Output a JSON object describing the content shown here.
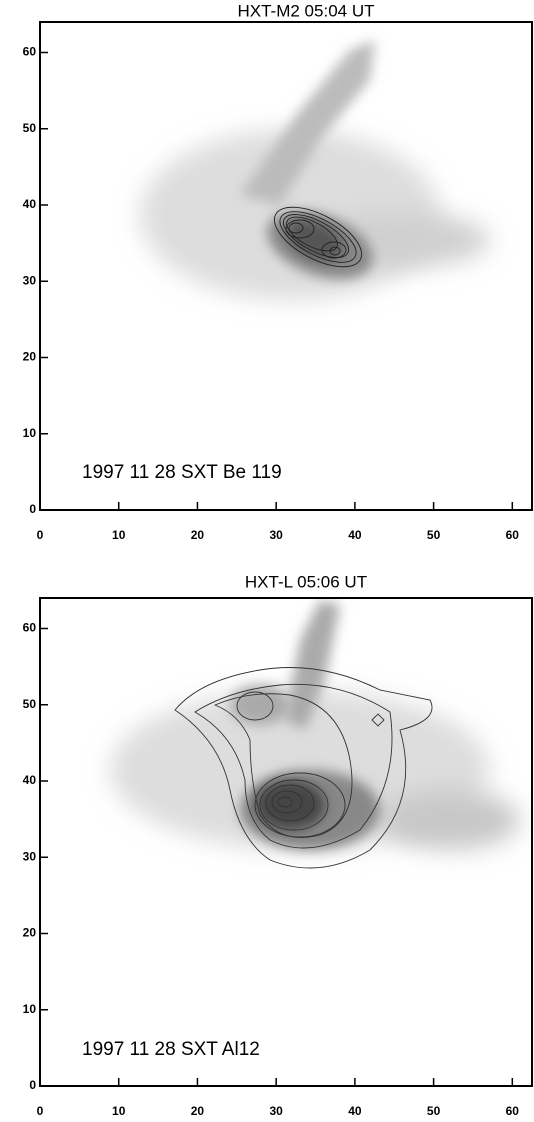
{
  "chart_data": [
    {
      "type": "image",
      "title": "HXT-M2 05:04  UT",
      "annotation": "1997 11 28   SXT Be 119",
      "xlim": [
        0,
        62.5
      ],
      "ylim": [
        0,
        64
      ],
      "xticks": [
        0,
        10,
        20,
        30,
        40,
        50,
        60
      ],
      "yticks": [
        0,
        10,
        20,
        30,
        40,
        50,
        60
      ]
    },
    {
      "type": "image",
      "title": "HXT-L 05:06   UT",
      "annotation": "1997 11 28   SXT Al12",
      "xlim": [
        0,
        62.5
      ],
      "ylim": [
        0,
        64
      ],
      "xticks": [
        0,
        10,
        20,
        30,
        40,
        50,
        60
      ],
      "yticks": [
        0,
        10,
        20,
        30,
        40,
        50,
        60
      ]
    }
  ]
}
